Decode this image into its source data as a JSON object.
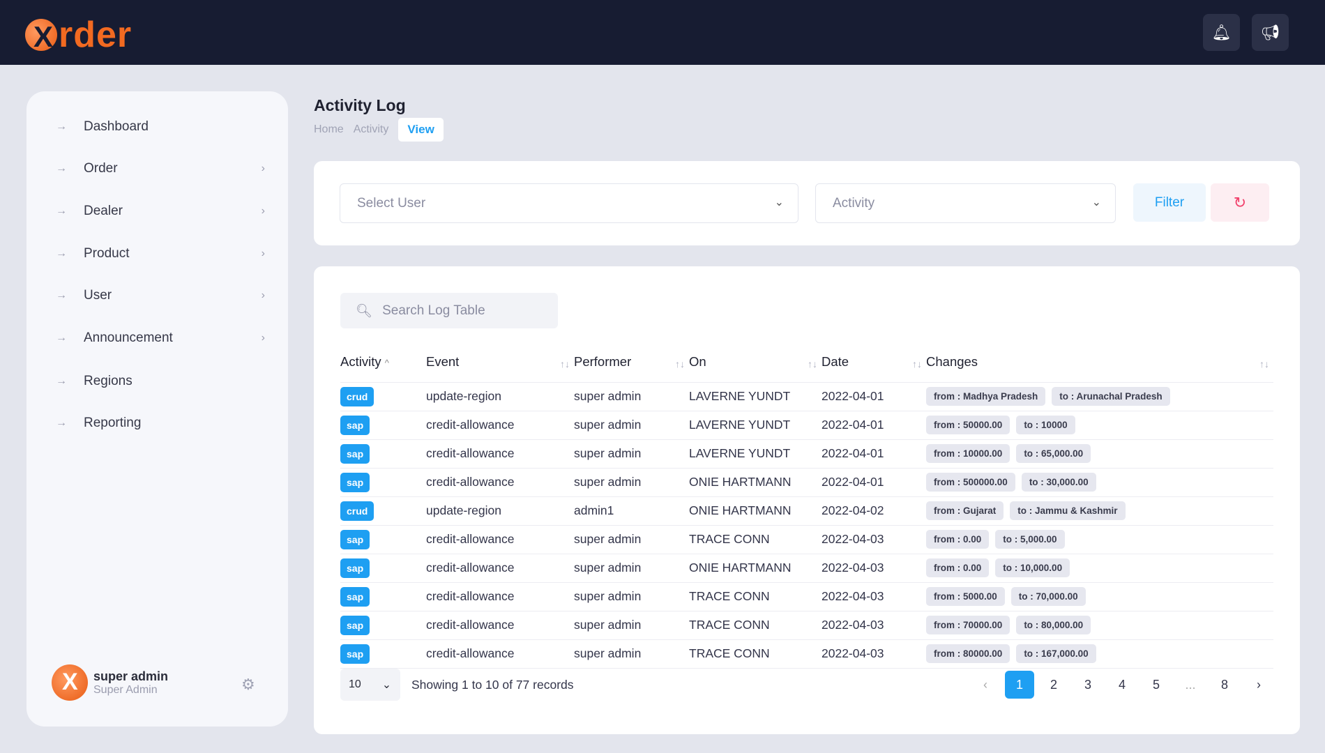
{
  "brand": {
    "logo_text": "rder",
    "logo_letter": "X",
    "accent": "#f26a21",
    "primary": "#1e9ff2"
  },
  "topbar": {
    "icons": [
      "bell-icon",
      "megaphone-icon"
    ]
  },
  "sidebar": {
    "items": [
      {
        "label": "Dashboard",
        "has_children": false
      },
      {
        "label": "Order",
        "has_children": true
      },
      {
        "label": "Dealer",
        "has_children": true
      },
      {
        "label": "Product",
        "has_children": true
      },
      {
        "label": "User",
        "has_children": true
      },
      {
        "label": "Announcement",
        "has_children": true
      },
      {
        "label": "Regions",
        "has_children": false
      },
      {
        "label": "Reporting",
        "has_children": false
      }
    ],
    "user": {
      "name": "super admin",
      "role": "Super Admin"
    }
  },
  "page": {
    "title": "Activity Log",
    "breadcrumb": [
      "Home",
      "Activity",
      "View"
    ]
  },
  "filters": {
    "user_placeholder": "Select User",
    "activity_placeholder": "Activity",
    "filter_label": "Filter"
  },
  "table": {
    "search_placeholder": "Search Log Table",
    "columns": [
      "Activity",
      "Event",
      "Performer",
      "On",
      "Date",
      "Changes"
    ],
    "rows": [
      [
        "crud",
        "update-region",
        "super admin",
        "LAVERNE YUNDT",
        "2022-04-01",
        "from : Madhya Pradesh",
        "to : Arunachal Pradesh"
      ],
      [
        "sap",
        "credit-allowance",
        "super admin",
        "LAVERNE YUNDT",
        "2022-04-01",
        "from : 50000.00",
        "to : 10000"
      ],
      [
        "sap",
        "credit-allowance",
        "super admin",
        "LAVERNE YUNDT",
        "2022-04-01",
        "from : 10000.00",
        "to : 65,000.00"
      ],
      [
        "sap",
        "credit-allowance",
        "super admin",
        "ONIE HARTMANN",
        "2022-04-01",
        "from : 500000.00",
        "to : 30,000.00"
      ],
      [
        "crud",
        "update-region",
        "admin1",
        "ONIE HARTMANN",
        "2022-04-02",
        "from : Gujarat",
        "to : Jammu & Kashmir"
      ],
      [
        "sap",
        "credit-allowance",
        "super admin",
        "TRACE CONN",
        "2022-04-03",
        "from : 0.00",
        "to : 5,000.00"
      ],
      [
        "sap",
        "credit-allowance",
        "super admin",
        "ONIE HARTMANN",
        "2022-04-03",
        "from : 0.00",
        "to : 10,000.00"
      ],
      [
        "sap",
        "credit-allowance",
        "super admin",
        "TRACE CONN",
        "2022-04-03",
        "from : 5000.00",
        "to : 70,000.00"
      ],
      [
        "sap",
        "credit-allowance",
        "super admin",
        "TRACE CONN",
        "2022-04-03",
        "from : 70000.00",
        "to : 80,000.00"
      ],
      [
        "sap",
        "credit-allowance",
        "super admin",
        "TRACE CONN",
        "2022-04-03",
        "from : 80000.00",
        "to : 167,000.00"
      ]
    ],
    "page_size": "10",
    "records_text": "Showing 1 to 10 of 77 records",
    "pages": [
      "1",
      "2",
      "3",
      "4",
      "5",
      "...",
      "8"
    ],
    "current_page": "1"
  }
}
